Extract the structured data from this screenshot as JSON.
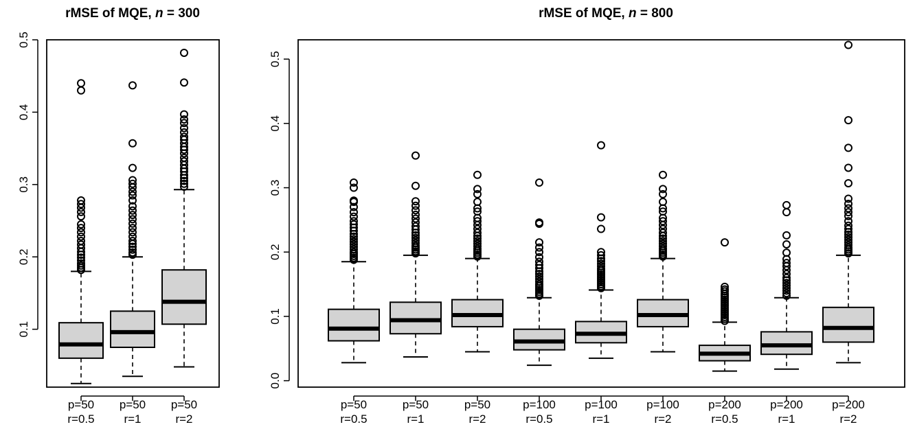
{
  "chart_data": [
    {
      "type": "boxplot",
      "title": "rMSE of MQE,",
      "title_n_symbol": "n",
      "title_n_value": "= 300",
      "ylim": [
        0.02,
        0.5
      ],
      "yticks": [
        "0.1",
        "0.2",
        "0.3",
        "0.4",
        "0.5"
      ],
      "ytick_values": [
        0.1,
        0.2,
        0.3,
        0.4,
        0.5
      ],
      "grid": false,
      "box_fill": "#d3d3d3",
      "categories": [
        {
          "line1": "p=50",
          "line2": "r=0.5"
        },
        {
          "line1": "p=50",
          "line2": "r=1"
        },
        {
          "line1": "p=50",
          "line2": "r=2"
        }
      ],
      "boxes": [
        {
          "low": 0.025,
          "q1": 0.06,
          "median": 0.079,
          "q3": 0.109,
          "high": 0.18,
          "outliers": [
            0.182,
            0.185,
            0.188,
            0.191,
            0.195,
            0.199,
            0.203,
            0.207,
            0.212,
            0.217,
            0.222,
            0.228,
            0.234,
            0.24,
            0.245,
            0.256,
            0.262,
            0.268,
            0.273,
            0.278,
            0.43,
            0.44
          ]
        },
        {
          "low": 0.035,
          "q1": 0.075,
          "median": 0.096,
          "q3": 0.125,
          "high": 0.2,
          "outliers": [
            0.203,
            0.206,
            0.21,
            0.214,
            0.218,
            0.222,
            0.228,
            0.234,
            0.24,
            0.246,
            0.252,
            0.258,
            0.264,
            0.27,
            0.278,
            0.285,
            0.29,
            0.296,
            0.301,
            0.306,
            0.323,
            0.357,
            0.437
          ]
        },
        {
          "low": 0.048,
          "q1": 0.107,
          "median": 0.138,
          "q3": 0.182,
          "high": 0.293,
          "outliers": [
            0.297,
            0.301,
            0.305,
            0.309,
            0.313,
            0.318,
            0.322,
            0.327,
            0.332,
            0.337,
            0.343,
            0.348,
            0.352,
            0.357,
            0.362,
            0.366,
            0.372,
            0.378,
            0.385,
            0.39,
            0.397,
            0.441,
            0.482
          ]
        }
      ]
    },
    {
      "type": "boxplot",
      "title": "rMSE of MQE,",
      "title_n_symbol": "n",
      "title_n_value": "= 800",
      "ylim": [
        -0.01,
        0.53
      ],
      "yticks": [
        "0.0",
        "0.1",
        "0.2",
        "0.3",
        "0.4",
        "0.5"
      ],
      "ytick_values": [
        0.0,
        0.1,
        0.2,
        0.3,
        0.4,
        0.5
      ],
      "grid": false,
      "box_fill": "#d3d3d3",
      "categories": [
        {
          "line1": "p=50",
          "line2": "r=0.5"
        },
        {
          "line1": "p=50",
          "line2": "r=1"
        },
        {
          "line1": "p=50",
          "line2": "r=2"
        },
        {
          "line1": "p=100",
          "line2": "r=0.5"
        },
        {
          "line1": "p=100",
          "line2": "r=1"
        },
        {
          "line1": "p=100",
          "line2": "r=2"
        },
        {
          "line1": "p=200",
          "line2": "r=0.5"
        },
        {
          "line1": "p=200",
          "line2": "r=1"
        },
        {
          "line1": "p=200",
          "line2": "r=2"
        }
      ],
      "boxes": [
        {
          "low": 0.028,
          "q1": 0.062,
          "median": 0.081,
          "q3": 0.111,
          "high": 0.185,
          "outliers": [
            0.188,
            0.191,
            0.194,
            0.197,
            0.2,
            0.204,
            0.208,
            0.212,
            0.216,
            0.22,
            0.224,
            0.228,
            0.233,
            0.238,
            0.243,
            0.248,
            0.255,
            0.262,
            0.27,
            0.278,
            0.28,
            0.3,
            0.308
          ]
        },
        {
          "low": 0.037,
          "q1": 0.073,
          "median": 0.094,
          "q3": 0.122,
          "high": 0.195,
          "outliers": [
            0.198,
            0.201,
            0.204,
            0.207,
            0.21,
            0.214,
            0.218,
            0.222,
            0.226,
            0.23,
            0.235,
            0.24,
            0.246,
            0.252,
            0.258,
            0.265,
            0.272,
            0.279,
            0.303,
            0.35
          ]
        },
        {
          "low": 0.045,
          "q1": 0.084,
          "median": 0.102,
          "q3": 0.126,
          "high": 0.19,
          "outliers": [
            0.193,
            0.196,
            0.199,
            0.202,
            0.205,
            0.209,
            0.213,
            0.217,
            0.221,
            0.225,
            0.23,
            0.236,
            0.242,
            0.248,
            0.253,
            0.263,
            0.268,
            0.278,
            0.29,
            0.298,
            0.32
          ]
        },
        {
          "low": 0.024,
          "q1": 0.048,
          "median": 0.061,
          "q3": 0.08,
          "high": 0.129,
          "outliers": [
            0.132,
            0.135,
            0.138,
            0.141,
            0.144,
            0.147,
            0.15,
            0.154,
            0.158,
            0.162,
            0.166,
            0.17,
            0.175,
            0.18,
            0.185,
            0.192,
            0.2,
            0.207,
            0.215,
            0.244,
            0.246,
            0.308
          ]
        },
        {
          "low": 0.035,
          "q1": 0.059,
          "median": 0.073,
          "q3": 0.092,
          "high": 0.141,
          "outliers": [
            0.144,
            0.147,
            0.15,
            0.153,
            0.156,
            0.159,
            0.162,
            0.165,
            0.168,
            0.171,
            0.174,
            0.178,
            0.182,
            0.186,
            0.19,
            0.195,
            0.2,
            0.236,
            0.254,
            0.366
          ]
        },
        {
          "low": 0.045,
          "q1": 0.084,
          "median": 0.102,
          "q3": 0.126,
          "high": 0.19,
          "outliers": [
            0.193,
            0.196,
            0.199,
            0.202,
            0.205,
            0.209,
            0.213,
            0.217,
            0.221,
            0.225,
            0.23,
            0.236,
            0.242,
            0.248,
            0.253,
            0.263,
            0.268,
            0.278,
            0.29,
            0.298,
            0.32
          ]
        },
        {
          "low": 0.015,
          "q1": 0.031,
          "median": 0.042,
          "q3": 0.055,
          "high": 0.091,
          "outliers": [
            0.093,
            0.096,
            0.099,
            0.102,
            0.105,
            0.108,
            0.111,
            0.114,
            0.117,
            0.12,
            0.123,
            0.126,
            0.129,
            0.132,
            0.135,
            0.139,
            0.142,
            0.146,
            0.215
          ]
        },
        {
          "low": 0.018,
          "q1": 0.041,
          "median": 0.055,
          "q3": 0.076,
          "high": 0.129,
          "outliers": [
            0.132,
            0.136,
            0.14,
            0.144,
            0.148,
            0.152,
            0.156,
            0.16,
            0.166,
            0.172,
            0.178,
            0.183,
            0.189,
            0.199,
            0.212,
            0.226,
            0.262,
            0.273
          ]
        },
        {
          "low": 0.028,
          "q1": 0.06,
          "median": 0.082,
          "q3": 0.114,
          "high": 0.195,
          "outliers": [
            0.198,
            0.201,
            0.204,
            0.207,
            0.211,
            0.215,
            0.219,
            0.223,
            0.227,
            0.231,
            0.236,
            0.241,
            0.248,
            0.256,
            0.262,
            0.268,
            0.275,
            0.283,
            0.307,
            0.331,
            0.362,
            0.405,
            0.522
          ]
        }
      ]
    }
  ]
}
